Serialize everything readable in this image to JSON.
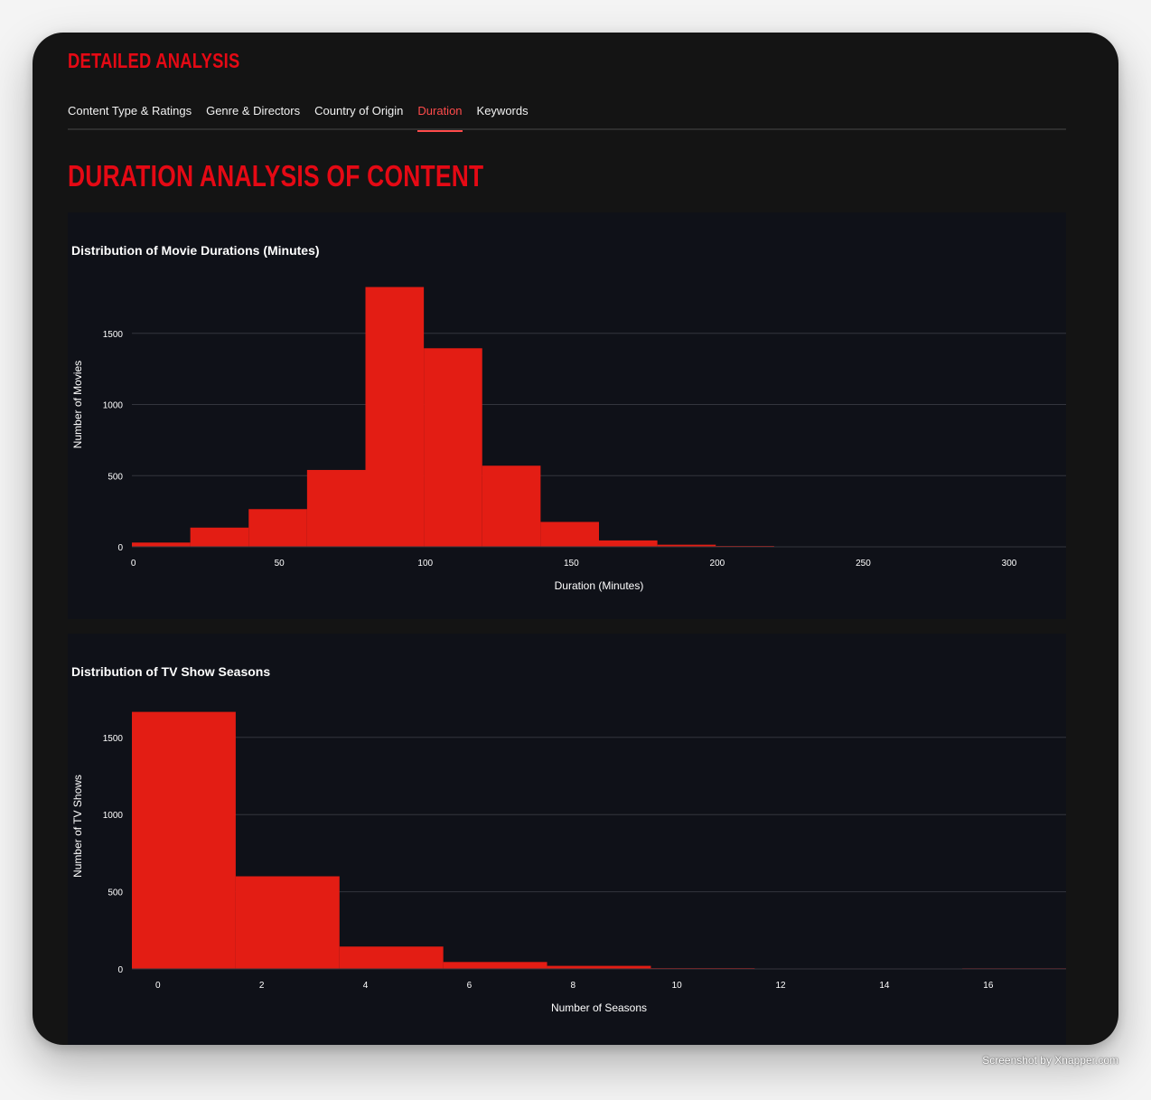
{
  "app": {
    "title": "DETAILED ANALYSIS"
  },
  "tabs": [
    {
      "label": "Content Type & Ratings",
      "active": false
    },
    {
      "label": "Genre & Directors",
      "active": false
    },
    {
      "label": "Country of Origin",
      "active": false
    },
    {
      "label": "Duration",
      "active": true
    },
    {
      "label": "Keywords",
      "active": false
    }
  ],
  "section": {
    "title": "DURATION ANALYSIS OF CONTENT"
  },
  "colors": {
    "accent": "#e50914",
    "bar": "#e31d14",
    "active_tab": "#ff4b4b",
    "plot_bg": "#0f1118",
    "grid": "#33353d"
  },
  "watermark": "Screenshot by Xnapper.com",
  "chart_data": [
    {
      "type": "bar",
      "title": "Distribution of Movie Durations (Minutes)",
      "xlabel": "Duration (Minutes)",
      "ylabel": "Number of Movies",
      "xlim": [
        -0.5,
        319.5
      ],
      "ylim": [
        0,
        2000
      ],
      "xticks": [
        0,
        50,
        100,
        150,
        200,
        250,
        300
      ],
      "yticks": [
        0,
        500,
        1000,
        1500
      ],
      "grid": true,
      "bins": [
        {
          "x0": -0.5,
          "x1": 19.5,
          "count": 30
        },
        {
          "x0": 19.5,
          "x1": 39.5,
          "count": 135
        },
        {
          "x0": 39.5,
          "x1": 59.5,
          "count": 265
        },
        {
          "x0": 59.5,
          "x1": 79.5,
          "count": 540
        },
        {
          "x0": 79.5,
          "x1": 99.5,
          "count": 1825
        },
        {
          "x0": 99.5,
          "x1": 119.5,
          "count": 1395
        },
        {
          "x0": 119.5,
          "x1": 139.5,
          "count": 570
        },
        {
          "x0": 139.5,
          "x1": 159.5,
          "count": 175
        },
        {
          "x0": 159.5,
          "x1": 179.5,
          "count": 45
        },
        {
          "x0": 179.5,
          "x1": 199.5,
          "count": 15
        },
        {
          "x0": 199.5,
          "x1": 219.5,
          "count": 6
        },
        {
          "x0": 219.5,
          "x1": 239.5,
          "count": 2
        },
        {
          "x0": 239.5,
          "x1": 259.5,
          "count": 2
        },
        {
          "x0": 259.5,
          "x1": 279.5,
          "count": 3
        },
        {
          "x0": 279.5,
          "x1": 299.5,
          "count": 2
        },
        {
          "x0": 299.5,
          "x1": 319.5,
          "count": 3
        }
      ]
    },
    {
      "type": "bar",
      "title": "Distribution of TV Show Seasons",
      "xlabel": "Number of Seasons",
      "ylabel": "Number of TV Shows",
      "xlim": [
        -0.5,
        17.5
      ],
      "ylim": [
        0,
        1850
      ],
      "xticks": [
        0,
        2,
        4,
        6,
        8,
        10,
        12,
        14,
        16
      ],
      "yticks": [
        0,
        500,
        1000,
        1500
      ],
      "grid": true,
      "bins": [
        {
          "x0": -0.5,
          "x1": 1.5,
          "count": 1665
        },
        {
          "x0": 1.5,
          "x1": 3.5,
          "count": 600
        },
        {
          "x0": 3.5,
          "x1": 5.5,
          "count": 145
        },
        {
          "x0": 5.5,
          "x1": 7.5,
          "count": 45
        },
        {
          "x0": 7.5,
          "x1": 9.5,
          "count": 20
        },
        {
          "x0": 9.5,
          "x1": 11.5,
          "count": 5
        },
        {
          "x0": 11.5,
          "x1": 13.5,
          "count": 3
        },
        {
          "x0": 13.5,
          "x1": 15.5,
          "count": 3
        },
        {
          "x0": 15.5,
          "x1": 17.5,
          "count": 4
        }
      ]
    }
  ]
}
